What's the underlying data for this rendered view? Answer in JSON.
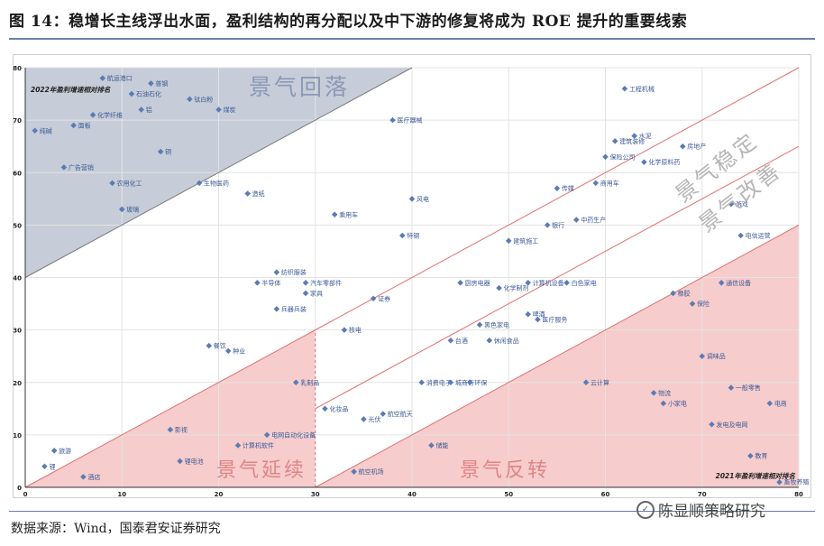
{
  "header": {
    "title": "图 14：稳增长主线浮出水面，盈利结构的再分配以及中下游的修复将成为 ROE 提升的重要线索"
  },
  "footer": {
    "source": "数据来源：Wind，国泰君安证券研究",
    "watermark": "陈显顺策略研究",
    "watermark_icon": "wechat-icon"
  },
  "chart_data": {
    "type": "scatter",
    "title": "",
    "xlabel": "2021年盈利增速相对排名",
    "ylabel": "2022年盈利增速相对排名",
    "xlim": [
      0,
      80
    ],
    "ylim": [
      0,
      80
    ],
    "xticks": [
      "0",
      "10",
      "20",
      "30",
      "40",
      "50",
      "60",
      "70",
      "80"
    ],
    "yticks": [
      "0",
      "10",
      "20",
      "30",
      "40",
      "50",
      "60",
      "70",
      "80"
    ],
    "grid": true,
    "marker_color": "#5b7bb5",
    "label_color": "#3b5a96",
    "regions": [
      {
        "name": "景气回落",
        "color": "#c6ccd8"
      },
      {
        "name": "景气延续",
        "color": "#f6cccc"
      },
      {
        "name": "景气反转",
        "color": "#f6cccc"
      },
      {
        "name": "景气稳定",
        "color": "#ffffff"
      },
      {
        "name": "景气改善",
        "color": "#ffffff"
      }
    ],
    "points": [
      {
        "label": "航运港口",
        "x": 8,
        "y": 78
      },
      {
        "label": "普钢",
        "x": 13,
        "y": 77
      },
      {
        "label": "石油石化",
        "x": 11,
        "y": 75
      },
      {
        "label": "钛白粉",
        "x": 17,
        "y": 74
      },
      {
        "label": "铝",
        "x": 12,
        "y": 72
      },
      {
        "label": "煤炭",
        "x": 20,
        "y": 72
      },
      {
        "label": "化学纤维",
        "x": 7,
        "y": 71
      },
      {
        "label": "面板",
        "x": 5,
        "y": 69
      },
      {
        "label": "纯碱",
        "x": 1,
        "y": 68
      },
      {
        "label": "铜",
        "x": 14,
        "y": 64
      },
      {
        "label": "广告营销",
        "x": 4,
        "y": 61
      },
      {
        "label": "农用化工",
        "x": 9,
        "y": 58
      },
      {
        "label": "生物医药",
        "x": 18,
        "y": 58
      },
      {
        "label": "造纸",
        "x": 23,
        "y": 56
      },
      {
        "label": "玻璃",
        "x": 10,
        "y": 53
      },
      {
        "label": "医疗器械",
        "x": 38,
        "y": 70
      },
      {
        "label": "风电",
        "x": 40,
        "y": 55
      },
      {
        "label": "乘用车",
        "x": 32,
        "y": 52
      },
      {
        "label": "特钢",
        "x": 39,
        "y": 48
      },
      {
        "label": "纺织服装",
        "x": 26,
        "y": 41
      },
      {
        "label": "半导体",
        "x": 24,
        "y": 39
      },
      {
        "label": "汽车零部件",
        "x": 29,
        "y": 39
      },
      {
        "label": "家具",
        "x": 29,
        "y": 37
      },
      {
        "label": "证券",
        "x": 36,
        "y": 36
      },
      {
        "label": "兵器兵装",
        "x": 26,
        "y": 34
      },
      {
        "label": "核电",
        "x": 33,
        "y": 30
      },
      {
        "label": "餐饮",
        "x": 19,
        "y": 27
      },
      {
        "label": "种业",
        "x": 21,
        "y": 26
      },
      {
        "label": "乳制品",
        "x": 28,
        "y": 20
      },
      {
        "label": "影视",
        "x": 15,
        "y": 11
      },
      {
        "label": "电网自动化设备",
        "x": 25,
        "y": 10
      },
      {
        "label": "计算机软件",
        "x": 22,
        "y": 8
      },
      {
        "label": "锂电池",
        "x": 16,
        "y": 5
      },
      {
        "label": "旅游",
        "x": 3,
        "y": 7
      },
      {
        "label": "锂",
        "x": 2,
        "y": 4
      },
      {
        "label": "酒店",
        "x": 6,
        "y": 2
      },
      {
        "label": "化妆品",
        "x": 31,
        "y": 15
      },
      {
        "label": "航空航天",
        "x": 37,
        "y": 14
      },
      {
        "label": "光伏",
        "x": 35,
        "y": 13
      },
      {
        "label": "航空机场",
        "x": 34,
        "y": 3
      },
      {
        "label": "储能",
        "x": 42,
        "y": 8
      },
      {
        "label": "消费电子",
        "x": 41,
        "y": 20
      },
      {
        "label": "城商行",
        "x": 44,
        "y": 20
      },
      {
        "label": "环保",
        "x": 46,
        "y": 20
      },
      {
        "label": "台酒",
        "x": 44,
        "y": 28
      },
      {
        "label": "休闲食品",
        "x": 48,
        "y": 28
      },
      {
        "label": "黑色家电",
        "x": 47,
        "y": 31
      },
      {
        "label": "啤酒",
        "x": 52,
        "y": 33
      },
      {
        "label": "医疗服务",
        "x": 53,
        "y": 32
      },
      {
        "label": "厨房电器",
        "x": 45,
        "y": 39
      },
      {
        "label": "化学制剂",
        "x": 49,
        "y": 38
      },
      {
        "label": "计算机设备",
        "x": 52,
        "y": 39
      },
      {
        "label": "白色家电",
        "x": 56,
        "y": 39
      },
      {
        "label": "建筑施工",
        "x": 50,
        "y": 47
      },
      {
        "label": "银行",
        "x": 54,
        "y": 50
      },
      {
        "label": "中药生产",
        "x": 57,
        "y": 51
      },
      {
        "label": "传媒",
        "x": 55,
        "y": 57
      },
      {
        "label": "商用车",
        "x": 59,
        "y": 58
      },
      {
        "label": "工程机械",
        "x": 62,
        "y": 76
      },
      {
        "label": "水泥",
        "x": 63,
        "y": 67
      },
      {
        "label": "建筑装修",
        "x": 61,
        "y": 66
      },
      {
        "label": "房地产",
        "x": 68,
        "y": 65
      },
      {
        "label": "保险公司",
        "x": 60,
        "y": 63
      },
      {
        "label": "化学原料药",
        "x": 64,
        "y": 62
      },
      {
        "label": "游戏",
        "x": 73,
        "y": 54
      },
      {
        "label": "电信运营",
        "x": 74,
        "y": 48
      },
      {
        "label": "通信设备",
        "x": 72,
        "y": 39
      },
      {
        "label": "橡胶",
        "x": 67,
        "y": 37
      },
      {
        "label": "保险",
        "x": 69,
        "y": 35
      },
      {
        "label": "调味品",
        "x": 70,
        "y": 25
      },
      {
        "label": "云计算",
        "x": 58,
        "y": 20
      },
      {
        "label": "一般零售",
        "x": 73,
        "y": 19
      },
      {
        "label": "物流",
        "x": 65,
        "y": 18
      },
      {
        "label": "小家电",
        "x": 66,
        "y": 16
      },
      {
        "label": "电商",
        "x": 77,
        "y": 16
      },
      {
        "label": "发电及电网",
        "x": 71,
        "y": 12
      },
      {
        "label": "教育",
        "x": 75,
        "y": 6
      },
      {
        "label": "畜牧养殖",
        "x": 78,
        "y": 1
      }
    ]
  }
}
